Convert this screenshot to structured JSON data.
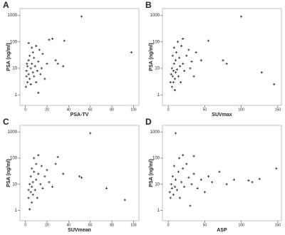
{
  "chart_data": [
    {
      "type": "scatter",
      "panel": "A",
      "x_label": "PSA-TV",
      "y_label": "PSA (ng/ml)",
      "log_y": true,
      "color": "#333333",
      "xlim": [
        -5,
        105
      ],
      "xticks": [
        0,
        20,
        40,
        60,
        80,
        100
      ],
      "ylim": [
        0.4,
        1800
      ],
      "yticks": [
        1,
        10,
        100,
        1000
      ],
      "x": [
        1,
        1,
        2,
        2,
        3,
        3,
        4,
        4,
        5,
        5,
        6,
        6,
        7,
        7,
        8,
        8,
        9,
        10,
        10,
        11,
        12,
        12,
        13,
        14,
        15,
        16,
        18,
        20,
        22,
        25,
        28,
        30,
        35,
        36,
        52,
        98,
        0.5,
        1.5,
        3
      ],
      "values": [
        5,
        8,
        3,
        12,
        6,
        20,
        4,
        30,
        10,
        2.5,
        15,
        60,
        7,
        40,
        5,
        25,
        12,
        3,
        70,
        8,
        18,
        1.2,
        50,
        6,
        10,
        35,
        4,
        15,
        120,
        130,
        20,
        15,
        12,
        110,
        900,
        40,
        2,
        15,
        90
      ]
    },
    {
      "type": "scatter",
      "panel": "B",
      "x_label": "SUVmax",
      "y_label": "PSA (ng/ml)",
      "log_y": true,
      "color": "#333333",
      "xlim": [
        -8,
        155
      ],
      "xticks": [
        0,
        50,
        100,
        150
      ],
      "ylim": [
        0.4,
        1800
      ],
      "yticks": [
        1,
        10,
        100,
        1000
      ],
      "x": [
        3,
        4,
        5,
        5,
        6,
        6,
        7,
        7,
        8,
        8,
        9,
        10,
        10,
        11,
        12,
        13,
        14,
        15,
        16,
        17,
        18,
        20,
        20,
        22,
        25,
        28,
        30,
        32,
        35,
        38,
        45,
        55,
        75,
        80,
        100,
        128,
        145,
        9
      ],
      "values": [
        3,
        6,
        2,
        10,
        5,
        30,
        8,
        3,
        15,
        60,
        4,
        20,
        7,
        40,
        9,
        100,
        5,
        25,
        12,
        3,
        70,
        15,
        130,
        8,
        30,
        50,
        10,
        18,
        5,
        40,
        20,
        110,
        20,
        15,
        900,
        7,
        2.5,
        1.5
      ]
    },
    {
      "type": "scatter",
      "panel": "C",
      "x_label": "SUVmean",
      "y_label": "PSA (ng/ml)",
      "log_y": true,
      "color": "#333333",
      "xlim": [
        -5,
        105
      ],
      "xticks": [
        0,
        20,
        40,
        60,
        80,
        100
      ],
      "ylim": [
        0.4,
        1800
      ],
      "yticks": [
        1,
        10,
        100,
        1000
      ],
      "x": [
        3,
        3,
        4,
        4,
        5,
        5,
        6,
        6,
        7,
        7,
        8,
        8,
        9,
        10,
        10,
        11,
        12,
        12,
        14,
        15,
        16,
        18,
        20,
        22,
        25,
        28,
        30,
        35,
        50,
        52,
        60,
        75,
        92,
        6
      ],
      "values": [
        3,
        6,
        1.1,
        10,
        5,
        20,
        8,
        40,
        4,
        12,
        30,
        100,
        6,
        15,
        60,
        3,
        25,
        130,
        10,
        50,
        7,
        20,
        35,
        12,
        8,
        60,
        110,
        25,
        20,
        18,
        900,
        7,
        2.5,
        2
      ]
    },
    {
      "type": "scatter",
      "panel": "D",
      "x_label": "ASP",
      "y_label": "PSA (ng/ml)",
      "log_y": true,
      "color": "#333333",
      "xlim": [
        -8,
        155
      ],
      "xticks": [
        0,
        50,
        100,
        150
      ],
      "ylim": [
        0.4,
        1800
      ],
      "yticks": [
        1,
        10,
        100,
        1000
      ],
      "x": [
        2,
        3,
        4,
        5,
        6,
        7,
        8,
        9,
        10,
        10,
        12,
        14,
        15,
        16,
        18,
        20,
        22,
        25,
        28,
        30,
        32,
        35,
        40,
        45,
        50,
        55,
        60,
        70,
        80,
        90,
        110,
        115,
        125,
        148,
        20,
        35
      ],
      "values": [
        5,
        3,
        10,
        7,
        20,
        4,
        50,
        8,
        900,
        15,
        6,
        30,
        100,
        3,
        12,
        40,
        8,
        60,
        18,
        1.5,
        10,
        25,
        7,
        15,
        5,
        20,
        12,
        30,
        10,
        15,
        14,
        12,
        16,
        40,
        130,
        120
      ]
    }
  ]
}
